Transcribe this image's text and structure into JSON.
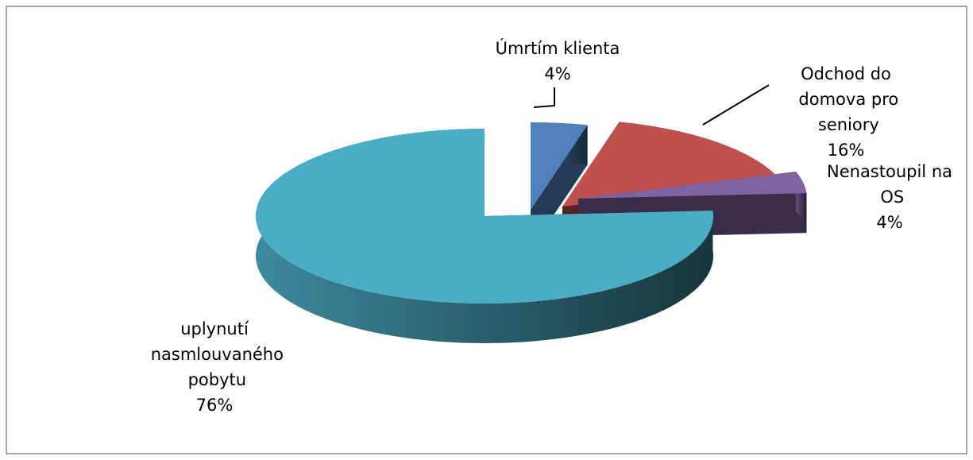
{
  "chart_data": {
    "type": "pie",
    "categories": [
      "Úmrtím klienta",
      "Odchod do domova pro seniory",
      "Nenastoupil na OS",
      "uplynutí nasmlouvaného pobytu"
    ],
    "values": [
      4,
      16,
      4,
      76
    ],
    "value_labels": [
      "4%",
      "16%",
      "4%",
      "76%"
    ],
    "colors": [
      "#4f81bd",
      "#c0504d",
      "#8064a2",
      "#4bacc6"
    ]
  }
}
